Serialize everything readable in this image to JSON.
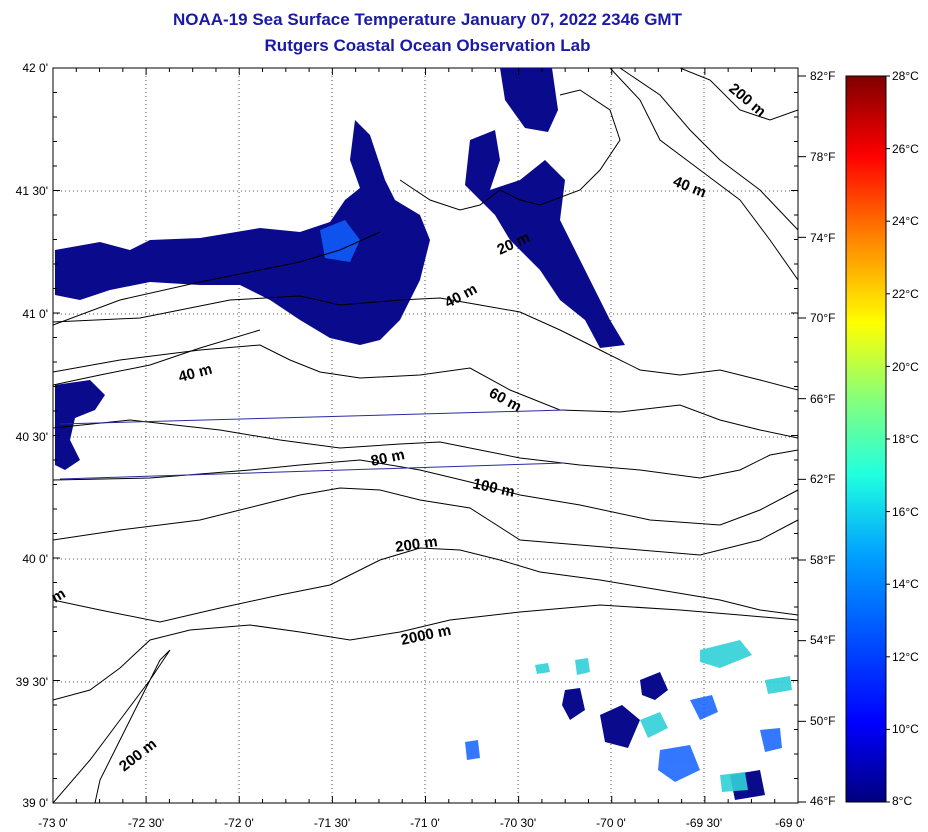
{
  "title": {
    "line1": "NOAA-19 Sea Surface Temperature January 07, 2022 2346 GMT",
    "line2": "Rutgers Coastal Ocean Observation Lab"
  },
  "lat_labels": [
    "42 0'",
    "41 30'",
    "41 0'",
    "40 30'",
    "40 0'",
    "39 30'",
    "39 0'"
  ],
  "lon_labels": [
    "-73 0'",
    "-72 30'",
    "-72 0'",
    "-71 30'",
    "-71 0'",
    "-70 30'",
    "-70 0'",
    "-69 30'",
    "-69 0'"
  ],
  "fahrenheit_labels": [
    "82°F",
    "78°F",
    "74°F",
    "70°F",
    "66°F",
    "62°F",
    "58°F",
    "54°F",
    "50°F",
    "46°F"
  ],
  "celsius_labels": [
    "28°C",
    "26°C",
    "24°C",
    "22°C",
    "20°C",
    "18°C",
    "16°C",
    "14°C",
    "12°C",
    "10°C",
    "8°C"
  ],
  "contour_labels": [
    "200 m",
    "40 m",
    "20 m",
    "40 m",
    "40 m",
    "60 m",
    "80 m",
    "100 m",
    "200 m",
    "2000 m",
    "200 m",
    "m"
  ],
  "colors": {
    "title": "#1a1aa6",
    "land_outline": "#000000",
    "sst_cold": "#0a0a8c",
    "sst_warm": "#30d0d8",
    "transect": "#2a2aa0",
    "colorbar": [
      "#00007f",
      "#0000ff",
      "#007fff",
      "#00ffff",
      "#7fff7f",
      "#ffff00",
      "#ff7f00",
      "#ff0000",
      "#7f0000"
    ]
  }
}
